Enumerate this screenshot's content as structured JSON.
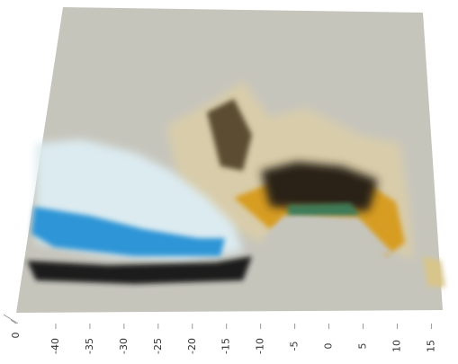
{
  "chart_data": {
    "type": "surface",
    "xlim": [
      -45,
      16
    ],
    "xticks": [
      -40,
      -35,
      -30,
      -25,
      -20,
      -15,
      -10,
      -5,
      0,
      5,
      10,
      15
    ],
    "yticks": [
      0
    ]
  }
}
